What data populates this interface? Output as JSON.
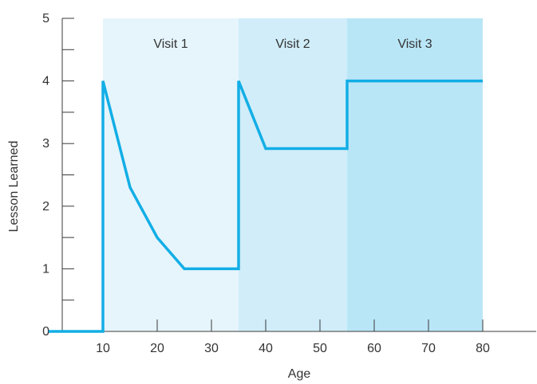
{
  "chart_data": {
    "type": "line",
    "title": "",
    "xlabel": "Age",
    "ylabel": "Lesson Learned",
    "xlim": [
      0,
      90
    ],
    "ylim": [
      0,
      5
    ],
    "x_ticks": [
      10,
      20,
      30,
      40,
      50,
      60,
      70,
      80
    ],
    "y_ticks": [
      0,
      1,
      2,
      3,
      4,
      5
    ],
    "y_minor_ticks": [
      0.5,
      1.5,
      2.5,
      3.5,
      4.5
    ],
    "grid": false,
    "regions": [
      {
        "label": "Visit 1",
        "x_start": 10,
        "x_end": 35,
        "color": "#e6f5fc"
      },
      {
        "label": "Visit 2",
        "x_start": 35,
        "x_end": 55,
        "color": "#d0edf9"
      },
      {
        "label": "Visit 3",
        "x_start": 55,
        "x_end": 80,
        "color": "#b9e6f7"
      }
    ],
    "series": [
      {
        "color": "#12aee6",
        "points": [
          [
            0,
            0
          ],
          [
            10,
            0
          ],
          [
            10,
            4
          ],
          [
            15,
            2.3
          ],
          [
            20,
            1.5
          ],
          [
            25,
            1
          ],
          [
            35,
            1
          ],
          [
            35,
            4
          ],
          [
            40,
            2.92
          ],
          [
            55,
            2.92
          ],
          [
            55,
            4
          ],
          [
            80,
            4
          ]
        ]
      }
    ]
  }
}
